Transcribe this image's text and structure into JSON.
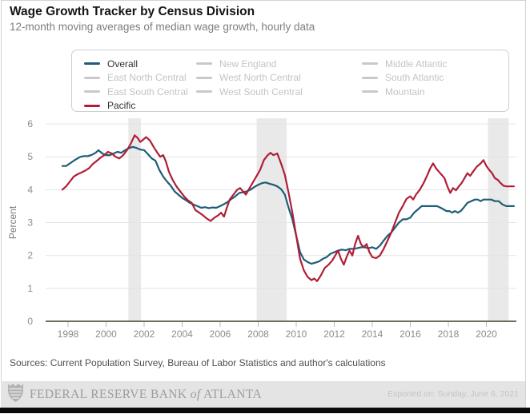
{
  "header": {
    "title": "Wage Growth Tracker by Census Division",
    "subtitle": "12-month moving averages of median wage growth, hourly data"
  },
  "legend": {
    "items": [
      {
        "label": "Overall",
        "color": "#1d5d77",
        "active": true
      },
      {
        "label": "New England",
        "color": "#c9c9c9",
        "active": false
      },
      {
        "label": "Middle Atlantic",
        "color": "#c9c9c9",
        "active": false
      },
      {
        "label": "East North Central",
        "color": "#c9c9c9",
        "active": false
      },
      {
        "label": "West North Central",
        "color": "#c9c9c9",
        "active": false
      },
      {
        "label": "South Atlantic",
        "color": "#c9c9c9",
        "active": false
      },
      {
        "label": "East South Central",
        "color": "#c9c9c9",
        "active": false
      },
      {
        "label": "West South Central",
        "color": "#c9c9c9",
        "active": false
      },
      {
        "label": "Mountain",
        "color": "#c9c9c9",
        "active": false
      },
      {
        "label": "Pacific",
        "color": "#b01e36",
        "active": true
      }
    ]
  },
  "chart_data": {
    "type": "line",
    "title": "Wage Growth Tracker by Census Division",
    "xlabel": "",
    "ylabel": "Percent",
    "x_range": [
      1996.8,
      2021.6
    ],
    "y_range": [
      0,
      6
    ],
    "x_ticks": [
      1998,
      2000,
      2002,
      2004,
      2006,
      2008,
      2010,
      2012,
      2014,
      2016,
      2018,
      2020
    ],
    "y_ticks": [
      0,
      1,
      2,
      3,
      4,
      5,
      6
    ],
    "grid": true,
    "legend_position": "top",
    "band_color": "#e9e9e9",
    "recession_bands": [
      [
        2001.17,
        2001.83
      ],
      [
        2007.92,
        2009.5
      ],
      [
        2020.08,
        2021.17
      ]
    ],
    "series": [
      {
        "name": "Overall",
        "color": "#1d5d77",
        "points": [
          [
            1997.7,
            4.72
          ],
          [
            1997.9,
            4.72
          ],
          [
            1998.1,
            4.8
          ],
          [
            1998.3,
            4.88
          ],
          [
            1998.5,
            4.95
          ],
          [
            1998.65,
            5.0
          ],
          [
            1998.85,
            5.02
          ],
          [
            1999.05,
            5.02
          ],
          [
            1999.25,
            5.06
          ],
          [
            1999.45,
            5.12
          ],
          [
            1999.6,
            5.2
          ],
          [
            1999.8,
            5.1
          ],
          [
            2000.0,
            5.05
          ],
          [
            2000.2,
            5.05
          ],
          [
            2000.4,
            5.1
          ],
          [
            2000.6,
            5.15
          ],
          [
            2000.8,
            5.12
          ],
          [
            2001.0,
            5.2
          ],
          [
            2001.2,
            5.26
          ],
          [
            2001.4,
            5.3
          ],
          [
            2001.6,
            5.27
          ],
          [
            2001.8,
            5.22
          ],
          [
            2002.0,
            5.2
          ],
          [
            2002.2,
            5.08
          ],
          [
            2002.4,
            4.95
          ],
          [
            2002.6,
            4.88
          ],
          [
            2002.8,
            4.6
          ],
          [
            2003.0,
            4.4
          ],
          [
            2003.2,
            4.25
          ],
          [
            2003.4,
            4.12
          ],
          [
            2003.6,
            3.95
          ],
          [
            2003.8,
            3.85
          ],
          [
            2004.0,
            3.75
          ],
          [
            2004.2,
            3.68
          ],
          [
            2004.4,
            3.6
          ],
          [
            2004.6,
            3.55
          ],
          [
            2004.8,
            3.5
          ],
          [
            2005.0,
            3.45
          ],
          [
            2005.2,
            3.47
          ],
          [
            2005.4,
            3.44
          ],
          [
            2005.6,
            3.46
          ],
          [
            2005.8,
            3.45
          ],
          [
            2006.0,
            3.5
          ],
          [
            2006.2,
            3.56
          ],
          [
            2006.4,
            3.63
          ],
          [
            2006.6,
            3.72
          ],
          [
            2006.8,
            3.8
          ],
          [
            2007.0,
            3.9
          ],
          [
            2007.2,
            3.92
          ],
          [
            2007.4,
            3.95
          ],
          [
            2007.6,
            4.0
          ],
          [
            2007.8,
            4.08
          ],
          [
            2008.0,
            4.15
          ],
          [
            2008.2,
            4.2
          ],
          [
            2008.4,
            4.22
          ],
          [
            2008.6,
            4.18
          ],
          [
            2008.8,
            4.15
          ],
          [
            2009.0,
            4.1
          ],
          [
            2009.2,
            4.02
          ],
          [
            2009.4,
            3.85
          ],
          [
            2009.6,
            3.45
          ],
          [
            2009.8,
            3.1
          ],
          [
            2010.0,
            2.6
          ],
          [
            2010.2,
            2.1
          ],
          [
            2010.4,
            1.88
          ],
          [
            2010.6,
            1.8
          ],
          [
            2010.8,
            1.75
          ],
          [
            2011.0,
            1.78
          ],
          [
            2011.2,
            1.82
          ],
          [
            2011.4,
            1.9
          ],
          [
            2011.6,
            1.95
          ],
          [
            2011.8,
            2.05
          ],
          [
            2012.0,
            2.1
          ],
          [
            2012.2,
            2.15
          ],
          [
            2012.4,
            2.18
          ],
          [
            2012.6,
            2.16
          ],
          [
            2012.8,
            2.2
          ],
          [
            2013.0,
            2.2
          ],
          [
            2013.2,
            2.22
          ],
          [
            2013.4,
            2.25
          ],
          [
            2013.6,
            2.25
          ],
          [
            2013.8,
            2.22
          ],
          [
            2014.0,
            2.25
          ],
          [
            2014.2,
            2.2
          ],
          [
            2014.4,
            2.3
          ],
          [
            2014.6,
            2.45
          ],
          [
            2014.8,
            2.6
          ],
          [
            2015.0,
            2.7
          ],
          [
            2015.2,
            2.85
          ],
          [
            2015.4,
            3.0
          ],
          [
            2015.6,
            3.1
          ],
          [
            2015.8,
            3.1
          ],
          [
            2016.0,
            3.15
          ],
          [
            2016.2,
            3.3
          ],
          [
            2016.4,
            3.4
          ],
          [
            2016.6,
            3.5
          ],
          [
            2016.8,
            3.5
          ],
          [
            2017.0,
            3.5
          ],
          [
            2017.2,
            3.5
          ],
          [
            2017.4,
            3.5
          ],
          [
            2017.6,
            3.45
          ],
          [
            2017.75,
            3.4
          ],
          [
            2017.9,
            3.35
          ],
          [
            2018.05,
            3.35
          ],
          [
            2018.2,
            3.3
          ],
          [
            2018.35,
            3.35
          ],
          [
            2018.5,
            3.3
          ],
          [
            2018.65,
            3.35
          ],
          [
            2018.8,
            3.45
          ],
          [
            2019.0,
            3.6
          ],
          [
            2019.2,
            3.65
          ],
          [
            2019.4,
            3.7
          ],
          [
            2019.55,
            3.7
          ],
          [
            2019.7,
            3.65
          ],
          [
            2019.85,
            3.7
          ],
          [
            2020.05,
            3.7
          ],
          [
            2020.25,
            3.7
          ],
          [
            2020.45,
            3.65
          ],
          [
            2020.65,
            3.65
          ],
          [
            2020.85,
            3.55
          ],
          [
            2021.05,
            3.5
          ],
          [
            2021.25,
            3.5
          ],
          [
            2021.45,
            3.5
          ]
        ]
      },
      {
        "name": "Pacific",
        "color": "#b01e36",
        "points": [
          [
            1997.7,
            4.0
          ],
          [
            1997.9,
            4.1
          ],
          [
            1998.1,
            4.25
          ],
          [
            1998.3,
            4.4
          ],
          [
            1998.5,
            4.47
          ],
          [
            1998.7,
            4.52
          ],
          [
            1998.9,
            4.58
          ],
          [
            1999.1,
            4.65
          ],
          [
            1999.3,
            4.78
          ],
          [
            1999.5,
            4.87
          ],
          [
            1999.7,
            4.97
          ],
          [
            1999.9,
            5.05
          ],
          [
            2000.1,
            5.15
          ],
          [
            2000.3,
            5.1
          ],
          [
            2000.5,
            5.0
          ],
          [
            2000.7,
            4.95
          ],
          [
            2000.9,
            5.05
          ],
          [
            2001.1,
            5.2
          ],
          [
            2001.3,
            5.4
          ],
          [
            2001.5,
            5.65
          ],
          [
            2001.65,
            5.58
          ],
          [
            2001.8,
            5.45
          ],
          [
            2001.95,
            5.52
          ],
          [
            2002.1,
            5.6
          ],
          [
            2002.3,
            5.5
          ],
          [
            2002.5,
            5.3
          ],
          [
            2002.7,
            5.12
          ],
          [
            2002.85,
            5.0
          ],
          [
            2003.0,
            5.05
          ],
          [
            2003.15,
            4.85
          ],
          [
            2003.3,
            4.55
          ],
          [
            2003.5,
            4.3
          ],
          [
            2003.7,
            4.1
          ],
          [
            2003.9,
            3.95
          ],
          [
            2004.1,
            3.8
          ],
          [
            2004.3,
            3.68
          ],
          [
            2004.5,
            3.6
          ],
          [
            2004.7,
            3.38
          ],
          [
            2004.9,
            3.3
          ],
          [
            2005.1,
            3.22
          ],
          [
            2005.3,
            3.12
          ],
          [
            2005.5,
            3.05
          ],
          [
            2005.7,
            3.15
          ],
          [
            2005.9,
            3.22
          ],
          [
            2006.05,
            3.3
          ],
          [
            2006.2,
            3.18
          ],
          [
            2006.35,
            3.45
          ],
          [
            2006.5,
            3.7
          ],
          [
            2006.7,
            3.85
          ],
          [
            2006.9,
            4.0
          ],
          [
            2007.05,
            4.05
          ],
          [
            2007.2,
            3.95
          ],
          [
            2007.35,
            3.85
          ],
          [
            2007.5,
            4.0
          ],
          [
            2007.7,
            4.2
          ],
          [
            2007.9,
            4.4
          ],
          [
            2008.1,
            4.6
          ],
          [
            2008.3,
            4.9
          ],
          [
            2008.5,
            5.05
          ],
          [
            2008.65,
            5.12
          ],
          [
            2008.8,
            5.05
          ],
          [
            2009.0,
            5.1
          ],
          [
            2009.2,
            4.8
          ],
          [
            2009.4,
            4.45
          ],
          [
            2009.6,
            3.9
          ],
          [
            2009.8,
            3.3
          ],
          [
            2010.0,
            2.6
          ],
          [
            2010.2,
            1.9
          ],
          [
            2010.4,
            1.55
          ],
          [
            2010.6,
            1.35
          ],
          [
            2010.8,
            1.25
          ],
          [
            2010.95,
            1.3
          ],
          [
            2011.1,
            1.22
          ],
          [
            2011.3,
            1.4
          ],
          [
            2011.5,
            1.62
          ],
          [
            2011.7,
            1.72
          ],
          [
            2011.9,
            1.85
          ],
          [
            2012.05,
            2.0
          ],
          [
            2012.2,
            2.15
          ],
          [
            2012.35,
            1.9
          ],
          [
            2012.5,
            1.72
          ],
          [
            2012.65,
            1.95
          ],
          [
            2012.8,
            2.15
          ],
          [
            2012.95,
            2.0
          ],
          [
            2013.1,
            2.35
          ],
          [
            2013.25,
            2.6
          ],
          [
            2013.4,
            2.35
          ],
          [
            2013.55,
            2.25
          ],
          [
            2013.7,
            2.35
          ],
          [
            2013.85,
            2.1
          ],
          [
            2014.0,
            1.95
          ],
          [
            2014.2,
            1.92
          ],
          [
            2014.4,
            2.0
          ],
          [
            2014.6,
            2.2
          ],
          [
            2014.8,
            2.45
          ],
          [
            2015.0,
            2.7
          ],
          [
            2015.2,
            3.0
          ],
          [
            2015.4,
            3.3
          ],
          [
            2015.6,
            3.5
          ],
          [
            2015.8,
            3.72
          ],
          [
            2016.0,
            3.8
          ],
          [
            2016.15,
            3.7
          ],
          [
            2016.3,
            3.85
          ],
          [
            2016.5,
            4.0
          ],
          [
            2016.7,
            4.2
          ],
          [
            2016.9,
            4.45
          ],
          [
            2017.05,
            4.65
          ],
          [
            2017.2,
            4.8
          ],
          [
            2017.35,
            4.65
          ],
          [
            2017.5,
            4.55
          ],
          [
            2017.65,
            4.45
          ],
          [
            2017.8,
            4.35
          ],
          [
            2017.95,
            4.1
          ],
          [
            2018.1,
            3.9
          ],
          [
            2018.25,
            4.05
          ],
          [
            2018.4,
            3.98
          ],
          [
            2018.55,
            4.1
          ],
          [
            2018.7,
            4.2
          ],
          [
            2018.85,
            4.35
          ],
          [
            2019.0,
            4.5
          ],
          [
            2019.15,
            4.42
          ],
          [
            2019.3,
            4.55
          ],
          [
            2019.5,
            4.7
          ],
          [
            2019.7,
            4.8
          ],
          [
            2019.85,
            4.9
          ],
          [
            2020.0,
            4.72
          ],
          [
            2020.15,
            4.6
          ],
          [
            2020.3,
            4.5
          ],
          [
            2020.45,
            4.35
          ],
          [
            2020.6,
            4.3
          ],
          [
            2020.75,
            4.2
          ],
          [
            2020.9,
            4.12
          ],
          [
            2021.05,
            4.1
          ],
          [
            2021.25,
            4.1
          ],
          [
            2021.45,
            4.1
          ]
        ]
      }
    ]
  },
  "footer": {
    "sources": "Sources: Current Population Survey, Bureau of Labor Statistics and author's calculations",
    "bank_prefix": "FEDERAL RESERVE BANK",
    "bank_of": "of",
    "bank_city": "ATLANTA",
    "exported": "Exported on:  Sunday, June 6, 2021"
  }
}
